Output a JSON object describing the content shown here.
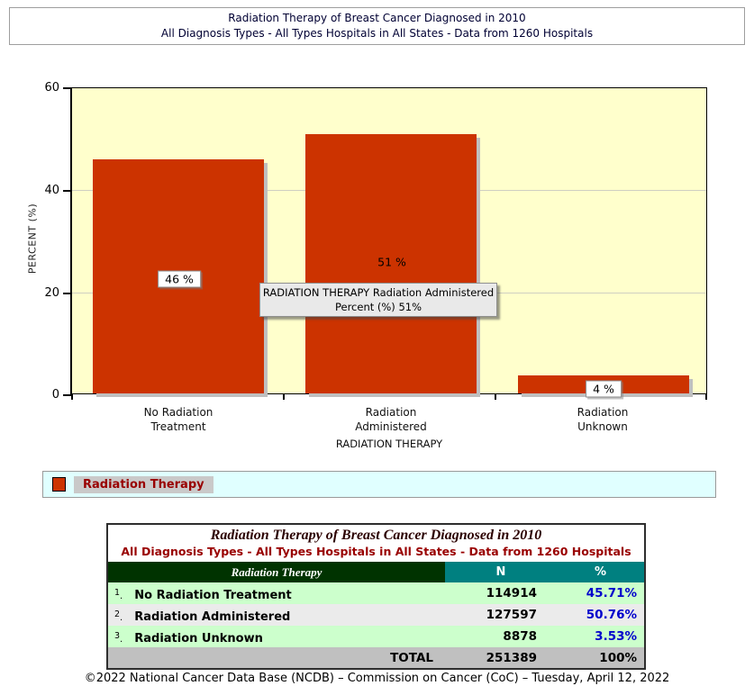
{
  "page": {
    "header_line1": "Radiation Therapy of Breast Cancer Diagnosed in 2010",
    "header_line2": "All Diagnosis Types - All Types Hospitals in All States - Data from 1260 Hospitals",
    "footer": "©2022 National Cancer Data Base (NCDB) – Commission on Cancer (CoC) – Tuesday, April 12, 2022"
  },
  "chart_data": {
    "type": "bar",
    "title": "Radiation Therapy of Breast Cancer Diagnosed in 2010",
    "series_name": "Radiation Therapy",
    "categories": [
      "No Radiation Treatment",
      "Radiation Administered",
      "Radiation Unknown"
    ],
    "category_lines": [
      [
        "No Radiation",
        "Treatment"
      ],
      [
        "Radiation",
        "Administered"
      ],
      [
        "Radiation",
        "Unknown"
      ]
    ],
    "values": [
      45.71,
      50.76,
      3.53
    ],
    "counts": [
      114914,
      127597,
      8878
    ],
    "total_count": 251389,
    "bar_labels": [
      "46 %",
      "51 %",
      "4 %"
    ],
    "xlabel": "RADIATION THERAPY",
    "ylabel": "PERCENT (%)",
    "ylim": [
      0,
      60
    ],
    "yticks": [
      0,
      20,
      40,
      60
    ],
    "grid": "horizontal gridlines at 20 and 40",
    "legend_position": "bottom",
    "bar_color": "#CC3300",
    "plot_bg": "#FFFFCC"
  },
  "tooltip": {
    "line1": "RADIATION THERAPY Radiation Administered",
    "line2": "Percent (%) 51%"
  },
  "legend": {
    "label": "Radiation Therapy",
    "swatch_color": "#CC3300",
    "background": "#E0FFFF"
  },
  "table": {
    "title": "Radiation Therapy of Breast Cancer Diagnosed in 2010",
    "subtitle": "All Diagnosis Types - All Types Hospitals in All States - Data from 1260 Hospitals",
    "columns": [
      "Radiation Therapy",
      "N",
      "%"
    ],
    "rows": [
      {
        "num": "1",
        "label": "No Radiation Treatment",
        "n": "114914",
        "pct": "45.71%"
      },
      {
        "num": "2",
        "label": "Radiation Administered",
        "n": "127597",
        "pct": "50.76%"
      },
      {
        "num": "3",
        "label": "Radiation Unknown",
        "n": "8878",
        "pct": "3.53%"
      }
    ],
    "total_label": "TOTAL",
    "total_n": "251389",
    "total_pct": "100%"
  },
  "colors": {
    "header_text": "#000033",
    "subtitle_red": "#990000",
    "table_header_green": "#003300",
    "table_header_teal": "#008080",
    "row_green": "#CCFFCC",
    "row_gray": "#EBEBEB",
    "total_gray": "#C0C0C0",
    "percent_blue": "#0000CC"
  }
}
